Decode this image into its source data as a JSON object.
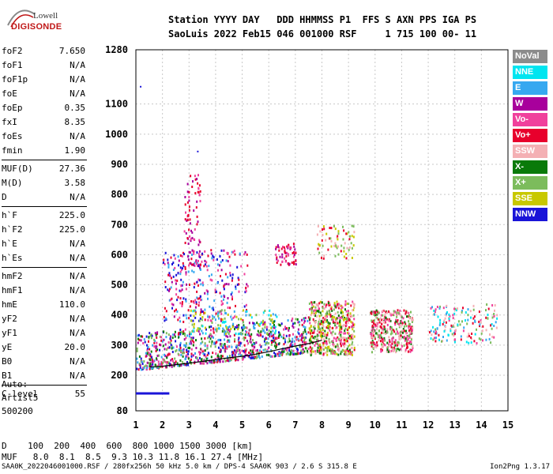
{
  "logo": {
    "line1": "Lowell",
    "line2": "DIGISONDE"
  },
  "header": {
    "row1": "Station YYYY DAY   DDD HHMMSS P1  FFS S AXN PPS IGA PS",
    "row2": "SaoLuis 2022 Feb15 046 001000 RSF     1 715 100 00- 11"
  },
  "params": [
    {
      "label": "foF2",
      "value": "7.650"
    },
    {
      "label": "foF1",
      "value": "N/A"
    },
    {
      "label": "foF1p",
      "value": "N/A"
    },
    {
      "label": "foE",
      "value": "N/A"
    },
    {
      "label": "foEp",
      "value": "0.35"
    },
    {
      "label": "fxI",
      "value": "8.35"
    },
    {
      "label": "foEs",
      "value": "N/A"
    },
    {
      "label": "fmin",
      "value": "1.90"
    },
    {
      "label": "MUF(D)",
      "value": "27.36"
    },
    {
      "label": "M(D)",
      "value": "3.58"
    },
    {
      "label": "D",
      "value": "N/A"
    },
    {
      "label": "h`F",
      "value": "225.0"
    },
    {
      "label": "h`F2",
      "value": "225.0"
    },
    {
      "label": "h`E",
      "value": "N/A"
    },
    {
      "label": "h`Es",
      "value": "N/A"
    },
    {
      "label": "hmF2",
      "value": "N/A"
    },
    {
      "label": "hmF1",
      "value": "N/A"
    },
    {
      "label": "hmE",
      "value": "110.0"
    },
    {
      "label": "yF2",
      "value": "N/A"
    },
    {
      "label": "yF1",
      "value": "N/A"
    },
    {
      "label": "yE",
      "value": "20.0"
    },
    {
      "label": "B0",
      "value": "N/A"
    },
    {
      "label": "B1",
      "value": "N/A"
    },
    {
      "label": "C-level",
      "value": "55"
    }
  ],
  "auto": {
    "line1": "Auto:",
    "line2": "Artist5",
    "line3": "500200"
  },
  "legend": [
    {
      "label": "NoVal",
      "color": "#8c8c8c"
    },
    {
      "label": "NNE",
      "color": "#00e5f0"
    },
    {
      "label": "E",
      "color": "#36a8f0"
    },
    {
      "label": "W",
      "color": "#a8009c"
    },
    {
      "label": "Vo-",
      "color": "#f0409c"
    },
    {
      "label": "Vo+",
      "color": "#e8002c"
    },
    {
      "label": "SSW",
      "color": "#f4b0b4"
    },
    {
      "label": "X-",
      "color": "#0a7a0a"
    },
    {
      "label": "X+",
      "color": "#7cbc5c"
    },
    {
      "label": "SSE",
      "color": "#c8c800"
    },
    {
      "label": "NNW",
      "color": "#1a14d8"
    }
  ],
  "footer": {
    "d_row": "D    100  200  400  600  800 1000 1500 3000 [km]",
    "muf_row": "MUF   8.0  8.1  8.5  9.3 10.3 11.8 16.1 27.4 [MHz]",
    "bottom": "SAA0K_2022046001000.RSF / 280fx256h 50 kHz 5.0 km / DPS-4 SAA0K 903 / 2.6 S 315.8 E",
    "version": "Ion2Png 1.3.17"
  },
  "chart_data": {
    "type": "scatter",
    "x_ticks": [
      "1",
      "2",
      "3",
      "4",
      "5",
      "6",
      "7",
      "8",
      "9",
      "10",
      "11",
      "12",
      "13",
      "14",
      "15"
    ],
    "y_ticks": [
      "80",
      "200",
      "300",
      "400",
      "500",
      "600",
      "700",
      "800",
      "900",
      "1000",
      "1100",
      "1280"
    ],
    "xlim": [
      1,
      15
    ],
    "ylim": [
      80,
      1280
    ],
    "grid": true,
    "trace": {
      "x": [
        1.5,
        2.0,
        2.5,
        3.0,
        3.5,
        4.0,
        4.5,
        5.0,
        5.5,
        6.0,
        6.5,
        7.0,
        7.5,
        8.0
      ],
      "y": [
        227,
        230,
        235,
        240,
        246,
        252,
        258,
        263,
        270,
        278,
        288,
        297,
        305,
        316
      ]
    },
    "clusters": [
      {
        "x": [
          1.0,
          7.5
        ],
        "y": [
          220,
          340
        ],
        "n": 900,
        "colors": [
          2,
          10,
          3,
          4,
          5,
          7,
          8
        ]
      },
      {
        "x": [
          7.5,
          9.2
        ],
        "y": [
          270,
          450
        ],
        "n": 500,
        "colors": [
          5,
          4,
          7,
          8,
          6,
          9
        ]
      },
      {
        "x": [
          9.8,
          11.4
        ],
        "y": [
          280,
          420
        ],
        "n": 380,
        "colors": [
          5,
          4,
          7,
          8,
          6
        ]
      },
      {
        "x": [
          12.0,
          14.6
        ],
        "y": [
          310,
          440
        ],
        "n": 160,
        "colors": [
          1,
          2,
          5,
          4,
          8,
          6
        ]
      },
      {
        "x": [
          2.0,
          5.2
        ],
        "y": [
          380,
          620
        ],
        "n": 300,
        "colors": [
          3,
          4,
          5,
          10,
          2
        ]
      },
      {
        "x": [
          2.8,
          3.4
        ],
        "y": [
          560,
          870
        ],
        "n": 80,
        "colors": [
          3,
          4,
          5
        ]
      },
      {
        "x": [
          6.2,
          7.0
        ],
        "y": [
          570,
          640
        ],
        "n": 60,
        "colors": [
          4,
          5,
          3
        ]
      },
      {
        "x": [
          7.8,
          9.2
        ],
        "y": [
          590,
          700
        ],
        "n": 70,
        "colors": [
          9,
          6,
          8,
          5
        ]
      },
      {
        "x": [
          3.0,
          6.3
        ],
        "y": [
          340,
          420
        ],
        "n": 120,
        "colors": [
          9,
          1,
          8,
          2
        ]
      }
    ],
    "echo_points": [
      {
        "x": 1.15,
        "y": 1160
      },
      {
        "x": 3.3,
        "y": 945
      }
    ],
    "low_band": {
      "x": [
        1.0,
        2.2
      ],
      "y": 140
    }
  }
}
